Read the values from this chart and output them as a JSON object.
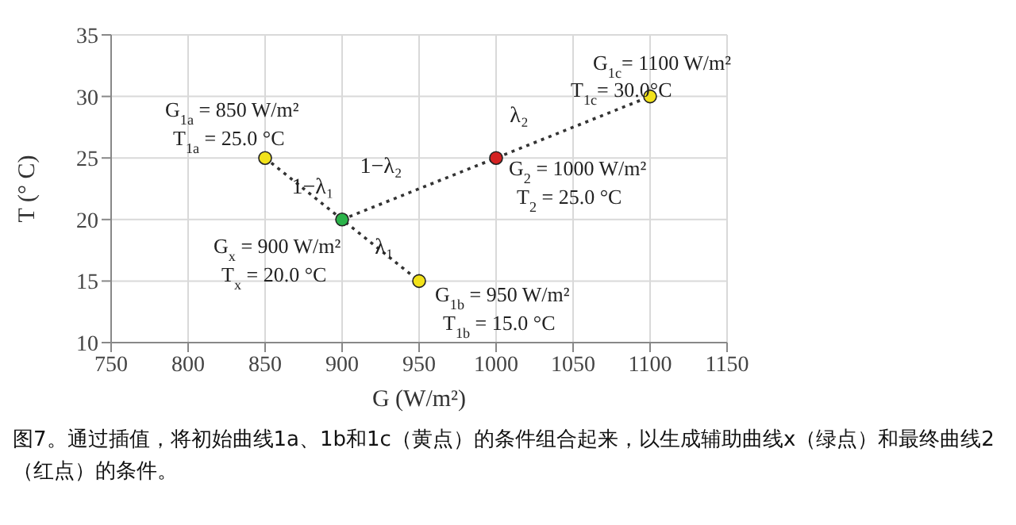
{
  "chart_data": {
    "type": "scatter",
    "xlabel": "G (W/m²)",
    "ylabel": "T (° C)",
    "xlim": [
      750,
      1150
    ],
    "xticks": [
      750,
      800,
      850,
      900,
      950,
      1000,
      1050,
      1100,
      1150
    ],
    "ylim": [
      10,
      35
    ],
    "yticks": [
      10,
      15,
      20,
      25,
      30,
      35
    ],
    "grid": true,
    "series": [
      {
        "type": "line",
        "color": "#333333",
        "line_style": "dotted",
        "marker": "none",
        "x": [
          850,
          900,
          950
        ],
        "values": [
          25,
          20,
          15
        ]
      },
      {
        "type": "line",
        "color": "#333333",
        "line_style": "dotted",
        "marker": "none",
        "x": [
          900,
          1000,
          1100
        ],
        "values": [
          20,
          25,
          30
        ]
      },
      {
        "marker": "circle",
        "x": [
          850,
          900,
          950,
          1000,
          1100
        ],
        "values": [
          25,
          20,
          15,
          25,
          30
        ],
        "colors": [
          "#f2e21a",
          "#2bb34a",
          "#f2e21a",
          "#d42222",
          "#f2e21a"
        ]
      }
    ],
    "annotations": [
      {
        "text": "G$_{1a}$ = 850 W/m²",
        "x": 850,
        "y": 25
      },
      {
        "text": "T$_{1a}$ = 25.0 °C",
        "x": 850,
        "y": 25
      },
      {
        "text": "G$_{x}$ = 900 W/m²",
        "x": 900,
        "y": 20
      },
      {
        "text": "T$_{x}$ = 20.0 °C",
        "x": 900,
        "y": 20
      },
      {
        "text": "G$_{1b}$ = 950 W/m²",
        "x": 950,
        "y": 15
      },
      {
        "text": "T$_{1b}$ = 15.0 °C",
        "x": 950,
        "y": 15
      },
      {
        "text": "G$_{2}$ = 1000 W/m²",
        "x": 1000,
        "y": 25
      },
      {
        "text": "T$_{2}$ = 25.0 °C",
        "x": 1000,
        "y": 25
      },
      {
        "text": "G$_{1c}$= 1100 W/m²",
        "x": 1100,
        "y": 30
      },
      {
        "text": "T$_{1c}$= 30.0°C",
        "x": 1100,
        "y": 30
      },
      "λ₁",
      "1−λ₁",
      "1−λ₂",
      "λ₂",
      "图7。通过插值，将初始曲线1a、1b和1c（黄点）的条件组合起来，以生成辅助曲线x（绿点）和最终曲线2（红点）的条件。"
    ]
  }
}
